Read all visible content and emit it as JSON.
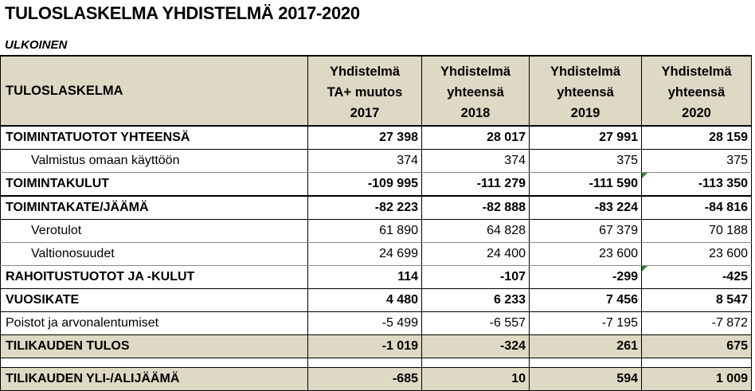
{
  "title": "TULOSLASKELMA YHDISTELMÄ 2017-2020",
  "subtitle": "ULKOINEN",
  "table": {
    "header": {
      "label": "TULOSLASKELMA",
      "columns": [
        [
          "Yhdistelmä",
          "TA+ muutos",
          "2017"
        ],
        [
          "Yhdistelmä",
          "yhteensä",
          "2018"
        ],
        [
          "Yhdistelmä",
          "yhteensä",
          "2019"
        ],
        [
          "Yhdistelmä",
          "yhteensä",
          "2020"
        ]
      ]
    },
    "rows": [
      {
        "label": "TOIMINTATUOTOT YHTEENSÄ",
        "values": [
          "27 398",
          "28 017",
          "27 991",
          "28 159"
        ]
      },
      {
        "label": "Valmistus omaan käyttöön",
        "values": [
          "374",
          "374",
          "375",
          "375"
        ]
      },
      {
        "label": "TOIMINTAKULUT",
        "values": [
          "-109 995",
          "-111 279",
          "-111 590",
          "-113 350"
        ]
      },
      {
        "label": "TOIMINTAKATE/JÄÄMÄ",
        "values": [
          "-82 223",
          "-82 888",
          "-83 224",
          "-84 816"
        ]
      },
      {
        "label": "Verotulot",
        "values": [
          "61 890",
          "64 828",
          "67 379",
          "70 188"
        ]
      },
      {
        "label": "Valtionosuudet",
        "values": [
          "24 699",
          "24 400",
          "23 600",
          "23 600"
        ]
      },
      {
        "label": "RAHOITUSTUOTOT JA -KULUT",
        "values": [
          "114",
          "-107",
          "-299",
          "-425"
        ]
      },
      {
        "label": "VUOSIKATE",
        "values": [
          "4 480",
          "6 233",
          "7 456",
          "8 547"
        ]
      },
      {
        "label": "Poistot ja arvonalentumiset",
        "values": [
          "-5 499",
          "-6 557",
          "-7 195",
          "-7 872"
        ]
      },
      {
        "label": "TILIKAUDEN TULOS",
        "values": [
          "-1 019",
          "-324",
          "261",
          "675"
        ]
      },
      {
        "label": "TILIKAUDEN YLI-/ALIJÄÄMÄ",
        "values": [
          "-685",
          "10",
          "594",
          "1 009"
        ]
      }
    ]
  },
  "colors": {
    "header_fill": "#ddd9c4",
    "comment_flag": "#2a8a2a"
  }
}
